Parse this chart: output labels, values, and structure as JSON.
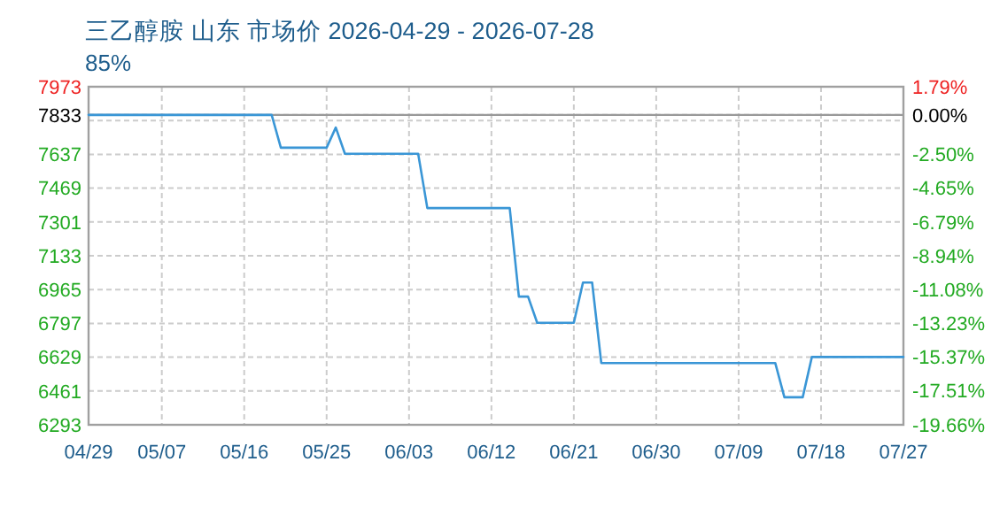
{
  "chart_data": {
    "type": "line",
    "title": "三乙醇胺 山东 市场价 2026-04-29 - 2026-07-28",
    "subtitle": "85%",
    "series": [
      {
        "color": "#3a96d6",
        "x": [
          "2026-04-29",
          "2026-05-19",
          "2026-05-20",
          "2026-05-25",
          "2026-05-26",
          "2026-05-27",
          "2026-06-04",
          "2026-06-05",
          "2026-06-14",
          "2026-06-15",
          "2026-06-16",
          "2026-06-17",
          "2026-06-21",
          "2026-06-22",
          "2026-06-23",
          "2026-06-24",
          "2026-07-13",
          "2026-07-14",
          "2026-07-16",
          "2026-07-17",
          "2026-07-27"
        ],
        "values": [
          7833,
          7833,
          7670,
          7670,
          7770,
          7640,
          7640,
          7370,
          7370,
          6930,
          6930,
          6800,
          6800,
          7000,
          7000,
          6600,
          6600,
          6430,
          6430,
          6630,
          6630
        ]
      }
    ],
    "xlim": [
      "2026-04-29",
      "2026-07-27"
    ],
    "xticks": [
      {
        "value": "2026-04-29",
        "label": "04/29"
      },
      {
        "value": "2026-05-07",
        "label": "05/07"
      },
      {
        "value": "2026-05-16",
        "label": "05/16"
      },
      {
        "value": "2026-05-25",
        "label": "05/25"
      },
      {
        "value": "2026-06-03",
        "label": "06/03"
      },
      {
        "value": "2026-06-12",
        "label": "06/12"
      },
      {
        "value": "2026-06-21",
        "label": "06/21"
      },
      {
        "value": "2026-06-30",
        "label": "06/30"
      },
      {
        "value": "2026-07-09",
        "label": "07/09"
      },
      {
        "value": "2026-07-18",
        "label": "07/18"
      },
      {
        "value": "2026-07-27",
        "label": "07/27"
      }
    ],
    "ylim": [
      6293,
      7973
    ],
    "yticks": [
      7973,
      7833,
      {
        "value": 7805,
        "label": null
      },
      7637,
      7469,
      7301,
      7133,
      6965,
      6797,
      6629,
      6461,
      6293
    ],
    "y2lim": [
      -19.66,
      1.79
    ],
    "y2ticks": [
      {
        "value": 1.79,
        "label": "1.79%"
      },
      {
        "value": 0,
        "label": "0.00%"
      },
      {
        "value": -2.5,
        "label": "-2.50%"
      },
      {
        "value": -4.65,
        "label": "-4.65%"
      },
      {
        "value": -6.79,
        "label": "-6.79%"
      },
      {
        "value": -8.94,
        "label": "-8.94%"
      },
      {
        "value": -11.08,
        "label": "-11.08%"
      },
      {
        "value": -13.23,
        "label": "-13.23%"
      },
      {
        "value": -15.37,
        "label": "-15.37%"
      },
      {
        "value": -17.51,
        "label": "-17.51%"
      },
      {
        "value": -19.66,
        "label": "-19.66%"
      }
    ],
    "grid": true,
    "ref_lines": [
      {
        "axis": "y",
        "value": 7833,
        "color": "#999999"
      }
    ]
  }
}
